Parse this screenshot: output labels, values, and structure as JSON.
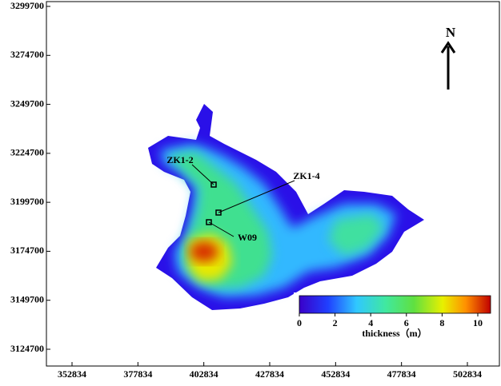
{
  "map": {
    "x_ticks": [
      352834,
      377834,
      402834,
      427834,
      452834,
      477834,
      502834
    ],
    "y_ticks": [
      3299700,
      3274700,
      3249700,
      3224700,
      3199700,
      3174700,
      3149700,
      3124700
    ],
    "north": "N",
    "wells": [
      {
        "label": "ZK1-2"
      },
      {
        "label": "ZK1-4"
      },
      {
        "label": "W09"
      }
    ],
    "colorbar": {
      "label": "thickness（m）",
      "ticks": [
        0,
        2,
        4,
        6,
        8,
        10
      ]
    }
  }
}
